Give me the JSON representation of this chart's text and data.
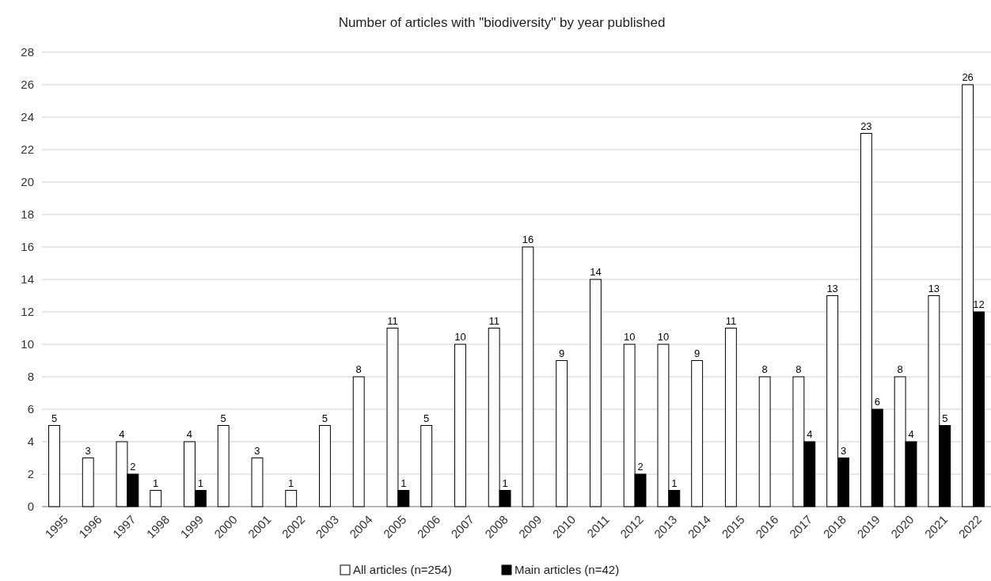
{
  "chart_data": {
    "type": "bar",
    "title": "Number of articles with \"biodiversity\" by year published",
    "categories": [
      "1995",
      "1996",
      "1997",
      "1998",
      "1999",
      "2000",
      "2001",
      "2002",
      "2003",
      "2004",
      "2005",
      "2006",
      "2007",
      "2008",
      "2009",
      "2010",
      "2011",
      "2012",
      "2013",
      "2014",
      "2015",
      "2016",
      "2017",
      "2018",
      "2019",
      "2020",
      "2021",
      "2022"
    ],
    "series": [
      {
        "name": "All articles (n=254)",
        "color": "#ffffff",
        "values": [
          5,
          3,
          4,
          1,
          4,
          5,
          3,
          1,
          5,
          8,
          11,
          5,
          10,
          11,
          16,
          9,
          14,
          10,
          10,
          9,
          11,
          8,
          8,
          13,
          23,
          8,
          13,
          26
        ]
      },
      {
        "name": "Main articles (n=42)",
        "color": "#000000",
        "values": [
          null,
          null,
          2,
          null,
          1,
          null,
          null,
          null,
          null,
          null,
          1,
          null,
          null,
          1,
          null,
          null,
          null,
          2,
          1,
          null,
          null,
          null,
          4,
          3,
          6,
          4,
          5,
          12
        ]
      }
    ],
    "ylim": [
      0,
      28
    ],
    "yticks": [
      0,
      2,
      4,
      6,
      8,
      10,
      12,
      14,
      16,
      18,
      20,
      22,
      24,
      26,
      28
    ],
    "grid": "y",
    "legend": "bottom",
    "data_labels": true
  }
}
